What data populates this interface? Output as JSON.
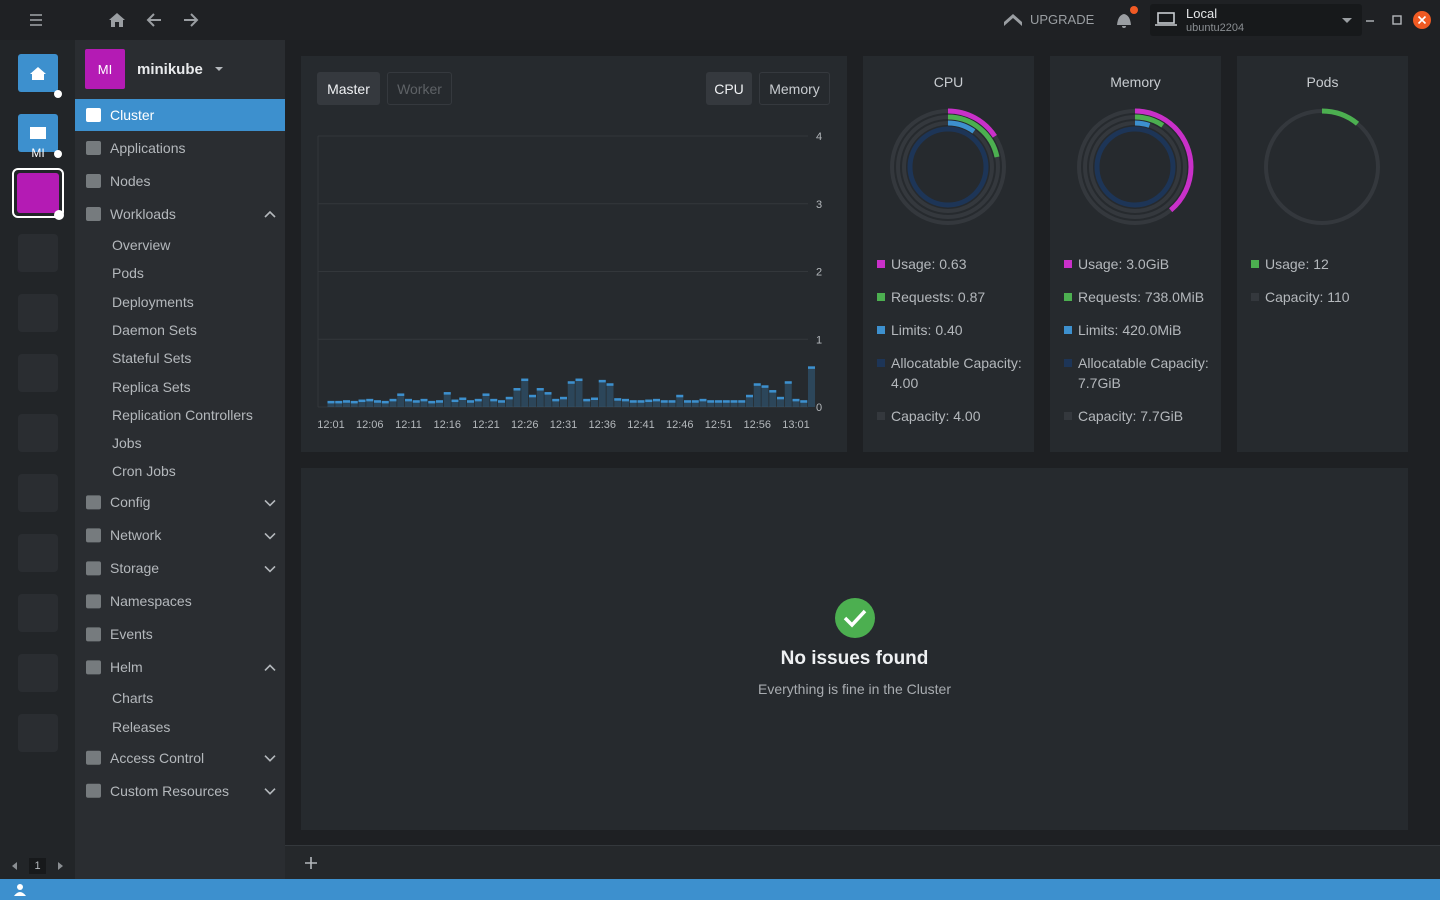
{
  "topbar": {
    "upgrade": "UPGRADE",
    "context": {
      "name": "Local",
      "host": "ubuntu2204"
    }
  },
  "hotbar": {
    "active_cluster": "MI",
    "page": "1"
  },
  "sidebar": {
    "cluster": {
      "avatar": "MI",
      "name": "minikube"
    },
    "items": [
      {
        "label": "Cluster",
        "active": true
      },
      {
        "label": "Applications"
      },
      {
        "label": "Nodes"
      },
      {
        "label": "Workloads",
        "expanded": true,
        "children": [
          "Overview",
          "Pods",
          "Deployments",
          "Daemon Sets",
          "Stateful Sets",
          "Replica Sets",
          "Replication Controllers",
          "Jobs",
          "Cron Jobs"
        ]
      },
      {
        "label": "Config",
        "expanded": false
      },
      {
        "label": "Network",
        "expanded": false
      },
      {
        "label": "Storage",
        "expanded": false
      },
      {
        "label": "Namespaces"
      },
      {
        "label": "Events"
      },
      {
        "label": "Helm",
        "expanded": true,
        "children": [
          "Charts",
          "Releases"
        ]
      },
      {
        "label": "Access Control",
        "expanded": false
      },
      {
        "label": "Custom Resources",
        "expanded": false
      }
    ]
  },
  "metrics": {
    "node_tabs": [
      "Master",
      "Worker"
    ],
    "active_node_tab": 0,
    "metric_tabs": [
      "CPU",
      "Memory"
    ],
    "active_metric_tab": 0
  },
  "chart_data": {
    "type": "bar",
    "categories": [
      "12:01",
      null,
      null,
      null,
      null,
      "12:06",
      null,
      null,
      null,
      null,
      "12:11",
      null,
      null,
      null,
      null,
      "12:16",
      null,
      null,
      null,
      null,
      "12:21",
      null,
      null,
      null,
      null,
      "12:26",
      null,
      null,
      null,
      null,
      "12:31",
      null,
      null,
      null,
      null,
      "12:36",
      null,
      null,
      null,
      null,
      "12:41",
      null,
      null,
      null,
      null,
      "12:46",
      null,
      null,
      null,
      null,
      "12:51",
      null,
      null,
      null,
      null,
      "12:56",
      null,
      null,
      null,
      null,
      "13:01",
      null,
      null
    ],
    "values": [
      0.09,
      0.09,
      0.1,
      0.09,
      0.11,
      0.12,
      0.1,
      0.09,
      0.12,
      0.2,
      0.12,
      0.1,
      0.12,
      0.09,
      0.1,
      0.22,
      0.11,
      0.14,
      0.1,
      0.12,
      0.2,
      0.12,
      0.1,
      0.15,
      0.28,
      0.42,
      0.18,
      0.28,
      0.22,
      0.12,
      0.15,
      0.38,
      0.42,
      0.12,
      0.14,
      0.4,
      0.35,
      0.13,
      0.12,
      0.1,
      0.1,
      0.11,
      0.12,
      0.1,
      0.1,
      0.18,
      0.1,
      0.1,
      0.12,
      0.1,
      0.1,
      0.1,
      0.1,
      0.1,
      0.18,
      0.35,
      0.32,
      0.25,
      0.15,
      0.38,
      0.12,
      0.1,
      0.6
    ],
    "color": "#3d90ce",
    "ylim": [
      0,
      4
    ],
    "yticks": [
      0,
      1,
      2,
      3,
      4
    ],
    "grid": true
  },
  "gauges": [
    {
      "title": "CPU",
      "items": [
        {
          "text": "Usage: 0.63",
          "value": 0.63,
          "color": "#c930c9"
        },
        {
          "text": "Requests: 0.87",
          "value": 0.87,
          "color": "#4caf50"
        },
        {
          "text": "Limits: 0.40",
          "value": 0.4,
          "color": "#3d90ce"
        },
        {
          "text": "Allocatable Capacity: 4.00",
          "value": 4,
          "color": "#1d3557"
        },
        {
          "text": "Capacity: 4.00",
          "value": 4,
          "color": "#34383d"
        }
      ]
    },
    {
      "title": "Memory",
      "items": [
        {
          "text": "Usage: 3.0GiB",
          "value": 3072,
          "color": "#c930c9"
        },
        {
          "text": "Requests: 738.0MiB",
          "value": 738,
          "color": "#4caf50"
        },
        {
          "text": "Limits: 420.0MiB",
          "value": 420,
          "color": "#3d90ce"
        },
        {
          "text": "Allocatable Capacity: 7.7GiB",
          "value": 7884.8,
          "color": "#1d3557"
        },
        {
          "text": "Capacity: 7.7GiB",
          "value": 7884.8,
          "color": "#34383d"
        }
      ]
    },
    {
      "title": "Pods",
      "items": [
        {
          "text": "Usage: 12",
          "value": 12,
          "color": "#4caf50"
        },
        {
          "text": "Capacity: 110",
          "value": 110,
          "color": "#34383d"
        }
      ]
    }
  ],
  "issues": {
    "title": "No issues found",
    "subtitle": "Everything is fine in the Cluster"
  }
}
